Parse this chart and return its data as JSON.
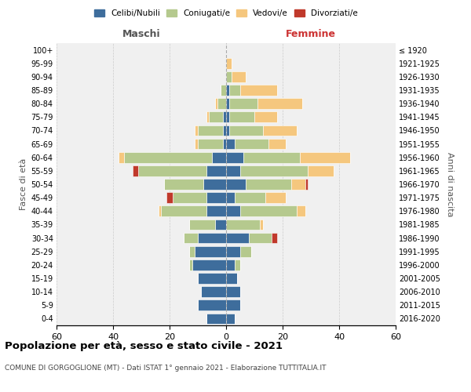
{
  "age_groups": [
    "0-4",
    "5-9",
    "10-14",
    "15-19",
    "20-24",
    "25-29",
    "30-34",
    "35-39",
    "40-44",
    "45-49",
    "50-54",
    "55-59",
    "60-64",
    "65-69",
    "70-74",
    "75-79",
    "80-84",
    "85-89",
    "90-94",
    "95-99",
    "100+"
  ],
  "birth_years": [
    "2016-2020",
    "2011-2015",
    "2006-2010",
    "2001-2005",
    "1996-2000",
    "1991-1995",
    "1986-1990",
    "1981-1985",
    "1976-1980",
    "1971-1975",
    "1966-1970",
    "1961-1965",
    "1956-1960",
    "1951-1955",
    "1946-1950",
    "1941-1945",
    "1936-1940",
    "1931-1935",
    "1926-1930",
    "1921-1925",
    "≤ 1920"
  ],
  "colors": {
    "celibi": "#3e6d9c",
    "coniugati": "#b5c98e",
    "vedovi": "#f5c77e",
    "divorziati": "#c0392b"
  },
  "maschi": {
    "celibi": [
      7,
      10,
      9,
      10,
      12,
      11,
      10,
      4,
      7,
      7,
      8,
      7,
      5,
      1,
      1,
      1,
      0,
      0,
      0,
      0,
      0
    ],
    "coniugati": [
      0,
      0,
      0,
      0,
      1,
      2,
      5,
      9,
      16,
      12,
      14,
      24,
      31,
      9,
      9,
      5,
      3,
      2,
      0,
      0,
      0
    ],
    "vedovi": [
      0,
      0,
      0,
      0,
      0,
      0,
      0,
      0,
      1,
      0,
      0,
      0,
      2,
      1,
      1,
      1,
      1,
      0,
      0,
      0,
      0
    ],
    "divorziati": [
      0,
      0,
      0,
      0,
      0,
      0,
      0,
      0,
      0,
      2,
      0,
      2,
      0,
      0,
      0,
      0,
      0,
      0,
      0,
      0,
      0
    ]
  },
  "femmine": {
    "celibi": [
      3,
      5,
      5,
      4,
      3,
      5,
      8,
      0,
      5,
      3,
      7,
      5,
      6,
      3,
      1,
      1,
      1,
      1,
      0,
      0,
      0
    ],
    "coniugati": [
      0,
      0,
      0,
      0,
      2,
      4,
      8,
      12,
      20,
      11,
      16,
      24,
      20,
      12,
      12,
      9,
      10,
      4,
      2,
      0,
      0
    ],
    "vedovi": [
      0,
      0,
      0,
      0,
      0,
      0,
      0,
      1,
      3,
      7,
      5,
      9,
      18,
      6,
      12,
      8,
      16,
      13,
      5,
      2,
      0
    ],
    "divorziati": [
      0,
      0,
      0,
      0,
      0,
      0,
      2,
      0,
      0,
      0,
      1,
      0,
      0,
      0,
      0,
      0,
      0,
      0,
      0,
      0,
      0
    ]
  },
  "xlim": 60,
  "title": "Popolazione per età, sesso e stato civile - 2021",
  "subtitle": "COMUNE DI GORGOGLIONE (MT) - Dati ISTAT 1° gennaio 2021 - Elaborazione TUTTITALIA.IT",
  "xlabel_left": "Maschi",
  "xlabel_right": "Femmine",
  "ylabel_left": "Fasce di età",
  "ylabel_right": "Anni di nascita",
  "bg_color": "#f0f0f0",
  "grid_color": "#cccccc"
}
